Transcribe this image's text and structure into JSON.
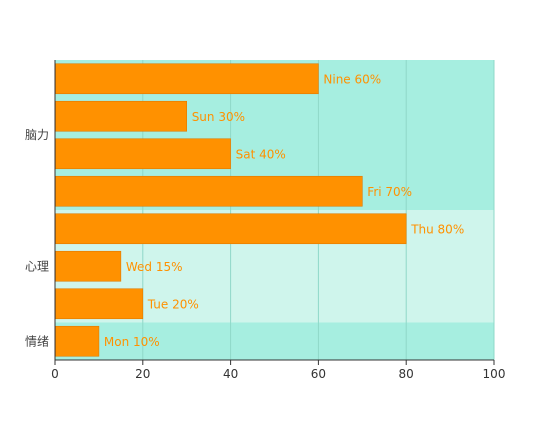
{
  "chart_data": {
    "type": "bar",
    "orientation": "horizontal",
    "xlim": [
      0,
      100
    ],
    "x_ticks": [
      0,
      20,
      40,
      60,
      80,
      100
    ],
    "grid": true,
    "bars": [
      {
        "name": "Nine",
        "value": 60,
        "label": "Nine 60%"
      },
      {
        "name": "Sun",
        "value": 30,
        "label": "Sun 30%"
      },
      {
        "name": "Sat",
        "value": 40,
        "label": "Sat 40%"
      },
      {
        "name": "Fri",
        "value": 70,
        "label": "Fri 70%"
      },
      {
        "name": "Thu",
        "value": 80,
        "label": "Thu 80%"
      },
      {
        "name": "Wed",
        "value": 15,
        "label": "Wed 15%"
      },
      {
        "name": "Tue",
        "value": 20,
        "label": "Tue 20%"
      },
      {
        "name": "Mon",
        "value": 10,
        "label": "Mon 10%"
      }
    ],
    "groups": [
      {
        "label": "脑力",
        "bar_count": 4,
        "color": "#a6eee0"
      },
      {
        "label": "心理",
        "bar_count": 3,
        "color": "#cff5ec"
      },
      {
        "label": "情绪",
        "bar_count": 1,
        "color": "#a6eee0"
      }
    ],
    "bar_color": "#ff9100",
    "label_color": "#ff9100"
  }
}
